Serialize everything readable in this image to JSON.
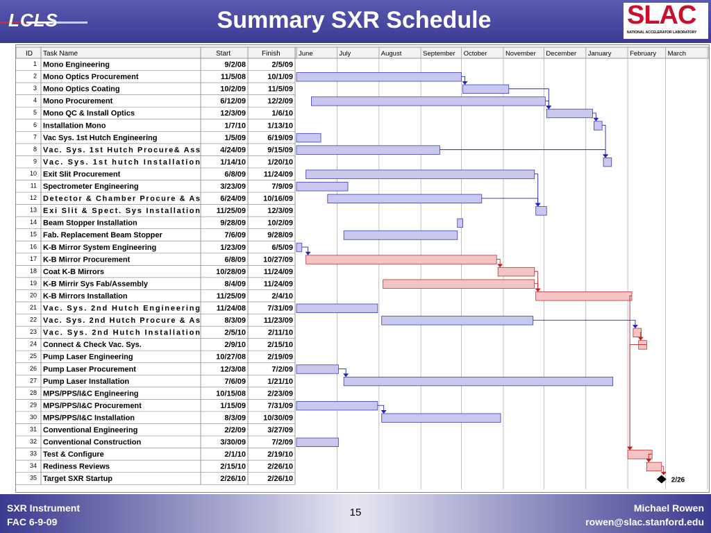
{
  "header": {
    "logo_text": "LCLS",
    "title": "Summary SXR Schedule",
    "slac_text": "SLAC",
    "slac_sub": "NATIONAL ACCELERATOR LABORATORY"
  },
  "table": {
    "col_id": "ID",
    "col_task": "Task Name",
    "col_start": "Start",
    "col_finish": "Finish",
    "months": [
      "June",
      "July",
      "August",
      "September",
      "October",
      "November",
      "December",
      "January",
      "February",
      "March"
    ],
    "tasks": [
      {
        "id": "1",
        "name": "Mono Engineering",
        "start": "9/2/08",
        "finish": "2/5/09"
      },
      {
        "id": "2",
        "name": "Mono Optics Procurement",
        "start": "11/5/08",
        "finish": "10/1/09"
      },
      {
        "id": "3",
        "name": "Mono Optics Coating",
        "start": "10/2/09",
        "finish": "11/5/09"
      },
      {
        "id": "4",
        "name": "Mono Procurement",
        "start": "6/12/09",
        "finish": "12/2/09"
      },
      {
        "id": "5",
        "name": "Mono QC & Install Optics",
        "start": "12/3/09",
        "finish": "1/6/10"
      },
      {
        "id": "6",
        "name": "Installation Mono",
        "start": "1/7/10",
        "finish": "1/13/10"
      },
      {
        "id": "7",
        "name": "Vac Sys. 1st Hutch Engineering",
        "start": "1/5/09",
        "finish": "6/19/09"
      },
      {
        "id": "8",
        "name": "Vac. Sys. 1st Hutch  Procure& Ass",
        "start": "4/24/09",
        "finish": "9/15/09"
      },
      {
        "id": "9",
        "name": "Vac. Sys. 1st hutch Installation",
        "start": "1/14/10",
        "finish": "1/20/10"
      },
      {
        "id": "10",
        "name": "Exit Slit Procurement",
        "start": "6/8/09",
        "finish": "11/24/09"
      },
      {
        "id": "11",
        "name": "Spectrometer Engineering",
        "start": "3/23/09",
        "finish": "7/9/09"
      },
      {
        "id": "12",
        "name": "Detector & Chamber Procure & As",
        "start": "6/24/09",
        "finish": "10/16/09"
      },
      {
        "id": "13",
        "name": "Exi Slit & Spect. Sys Installation",
        "start": "11/25/09",
        "finish": "12/3/09"
      },
      {
        "id": "14",
        "name": "Beam Stopper Installation",
        "start": "9/28/09",
        "finish": "10/2/09"
      },
      {
        "id": "15",
        "name": "Fab. Replacement Beam Stopper",
        "start": "7/6/09",
        "finish": "9/28/09"
      },
      {
        "id": "16",
        "name": "K-B Mirror System Engineering",
        "start": "1/23/09",
        "finish": "6/5/09"
      },
      {
        "id": "17",
        "name": "K-B Mirror Procurement",
        "start": "6/8/09",
        "finish": "10/27/09"
      },
      {
        "id": "18",
        "name": "Coat K-B Mirrors",
        "start": "10/28/09",
        "finish": "11/24/09"
      },
      {
        "id": "19",
        "name": "K-B Mirrir Sys Fab/Assembly",
        "start": "8/4/09",
        "finish": "11/24/09"
      },
      {
        "id": "20",
        "name": "K-B Mirrors Installation",
        "start": "11/25/09",
        "finish": "2/4/10"
      },
      {
        "id": "21",
        "name": "Vac. Sys. 2nd Hutch Engineering",
        "start": "11/24/08",
        "finish": "7/31/09"
      },
      {
        "id": "22",
        "name": "Vac. Sys. 2nd Hutch  Procure & As",
        "start": "8/3/09",
        "finish": "11/23/09"
      },
      {
        "id": "23",
        "name": "Vac. Sys. 2nd Hutch Installation",
        "start": "2/5/10",
        "finish": "2/11/10"
      },
      {
        "id": "24",
        "name": "Connect & Check Vac. Sys.",
        "start": "2/9/10",
        "finish": "2/15/10"
      },
      {
        "id": "25",
        "name": "Pump Laser Engineering",
        "start": "10/27/08",
        "finish": "2/19/09"
      },
      {
        "id": "26",
        "name": "Pump Laser Procurement",
        "start": "12/3/08",
        "finish": "7/2/09"
      },
      {
        "id": "27",
        "name": "Pump Laser Installation",
        "start": "7/6/09",
        "finish": "1/21/10"
      },
      {
        "id": "28",
        "name": "MPS/PPS/I&C Engineering",
        "start": "10/15/08",
        "finish": "2/23/09"
      },
      {
        "id": "29",
        "name": "MPS/PPS/I&C Procurement",
        "start": "1/15/09",
        "finish": "7/31/09"
      },
      {
        "id": "30",
        "name": "MPS/PPS/I&C Installation",
        "start": "8/3/09",
        "finish": "10/30/09"
      },
      {
        "id": "31",
        "name": "Conventional Engineering",
        "start": "2/2/09",
        "finish": "3/27/09"
      },
      {
        "id": "32",
        "name": "Conventional Construction",
        "start": "3/30/09",
        "finish": "7/2/09"
      },
      {
        "id": "33",
        "name": "Test & Configure",
        "start": "2/1/10",
        "finish": "2/19/10"
      },
      {
        "id": "34",
        "name": "Rediness Reviews",
        "start": "2/15/10",
        "finish": "2/26/10"
      },
      {
        "id": "35",
        "name": "Target SXR Startup",
        "start": "2/26/10",
        "finish": "2/26/10"
      }
    ],
    "milestone_label": "2/26"
  },
  "colors": {
    "blue_bar": "#c8c8ee",
    "blue_edge": "#3b3bb8",
    "red_bar": "#f4c4c4",
    "red_edge": "#c03030",
    "link_blue": "#2020c0",
    "link_red": "#c02020"
  },
  "footer": {
    "left1": "SXR Instrument",
    "left2": "FAC   6-9-09",
    "page": "15",
    "right1": "Michael Rowen",
    "right2": "rowen@slac.stanford.edu"
  }
}
